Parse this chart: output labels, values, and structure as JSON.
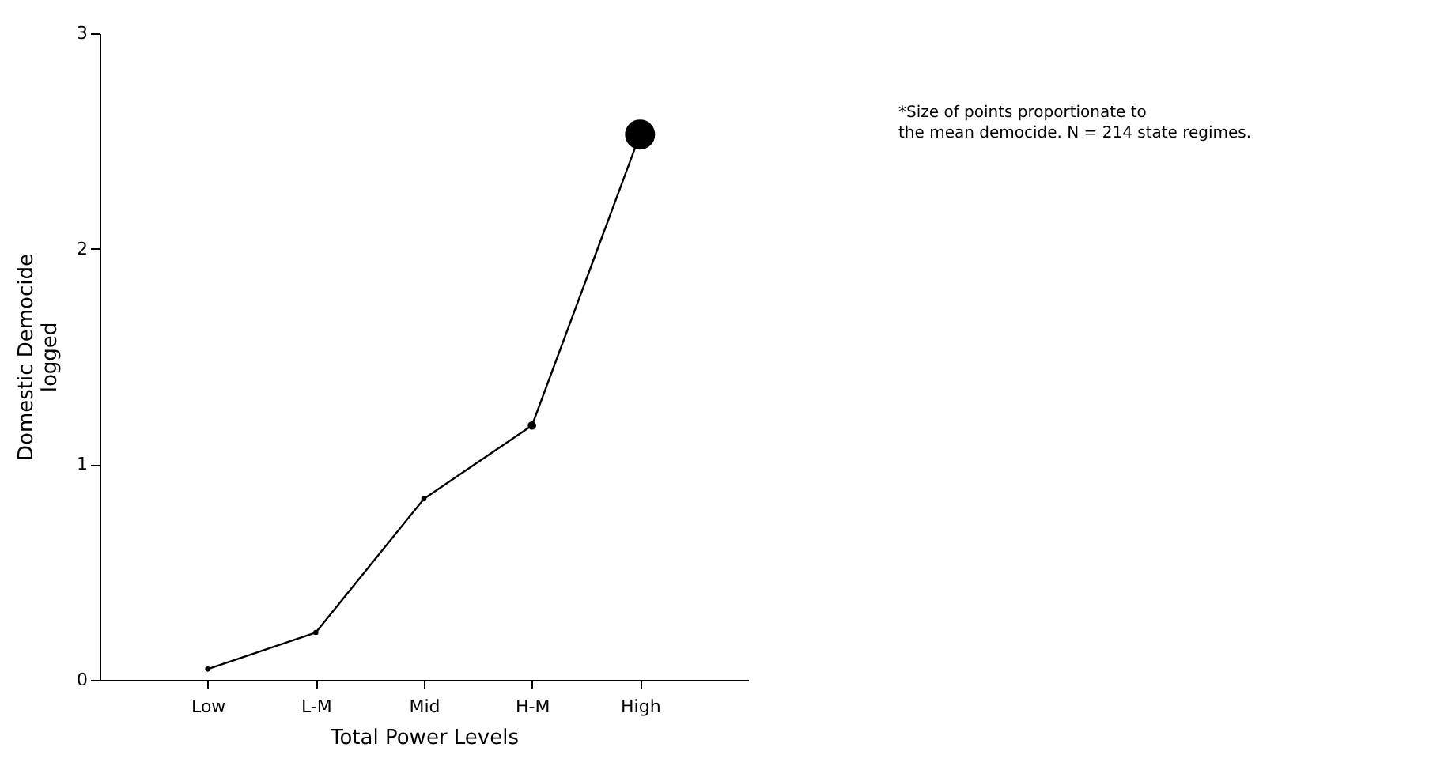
{
  "chart_data": {
    "type": "line",
    "xlabel": "Total Power Levels",
    "ylabel": "Domestic Democide\nlogged",
    "categories": [
      "Low",
      "L-M",
      "Mid",
      "H-M",
      "High"
    ],
    "series": [
      {
        "color": "#000000",
        "values": [
          0.05,
          0.22,
          0.84,
          1.18,
          2.53
        ]
      },
      {
        "type": "bubble",
        "color": "#000000",
        "values": [
          0.05,
          0.22,
          0.84,
          1.18,
          2.53
        ],
        "sizes": [
          0.03,
          0.03,
          0.03,
          0.08,
          1
        ]
      }
    ],
    "ylim": [
      0,
      3
    ],
    "yticks": [
      0,
      1,
      2,
      3
    ],
    "grid": false,
    "annotations": [
      "*Size of points proportionate to",
      "the mean democide. N = 214 state regimes."
    ]
  }
}
